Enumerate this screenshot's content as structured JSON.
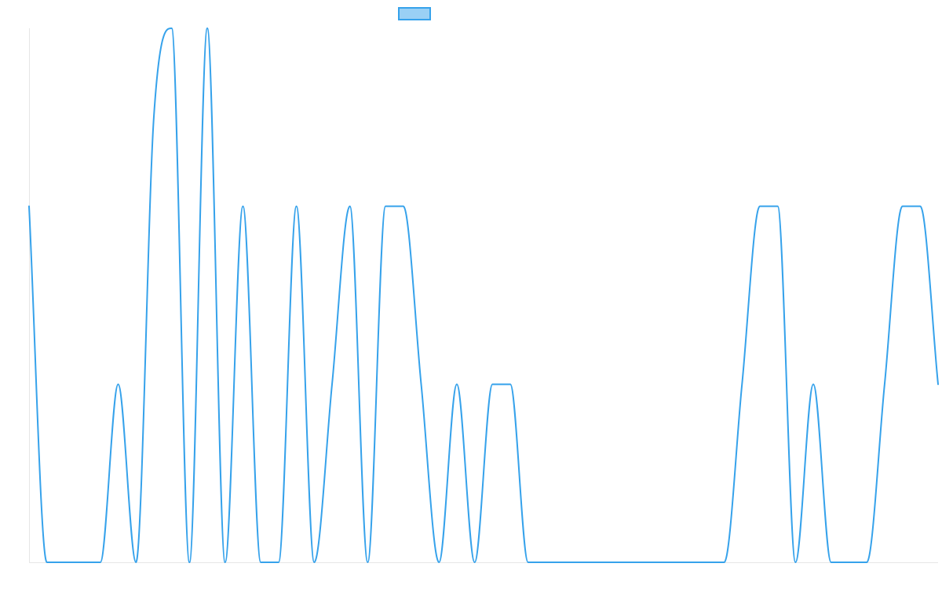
{
  "chart_data": {
    "type": "line",
    "title": "",
    "xlabel": "",
    "ylabel": "",
    "ylim": [
      0,
      3
    ],
    "grid": false,
    "legend": "top-center",
    "colors": {
      "line": "#36a2eb",
      "legend_fill": "#9ad0f5",
      "axis": "#e6e6e6"
    },
    "series": [
      {
        "values": [
          2,
          0,
          0,
          0,
          0,
          1,
          0,
          2.5,
          3,
          0,
          3,
          0,
          2,
          0,
          0,
          2,
          0,
          1,
          2,
          0,
          2,
          2,
          1,
          0,
          1,
          0,
          1,
          1,
          0,
          0,
          0,
          0,
          0,
          0,
          0,
          0,
          0,
          0,
          0,
          0,
          1,
          2,
          2,
          0,
          1,
          0,
          0,
          0,
          1,
          2,
          2,
          1
        ]
      }
    ]
  }
}
